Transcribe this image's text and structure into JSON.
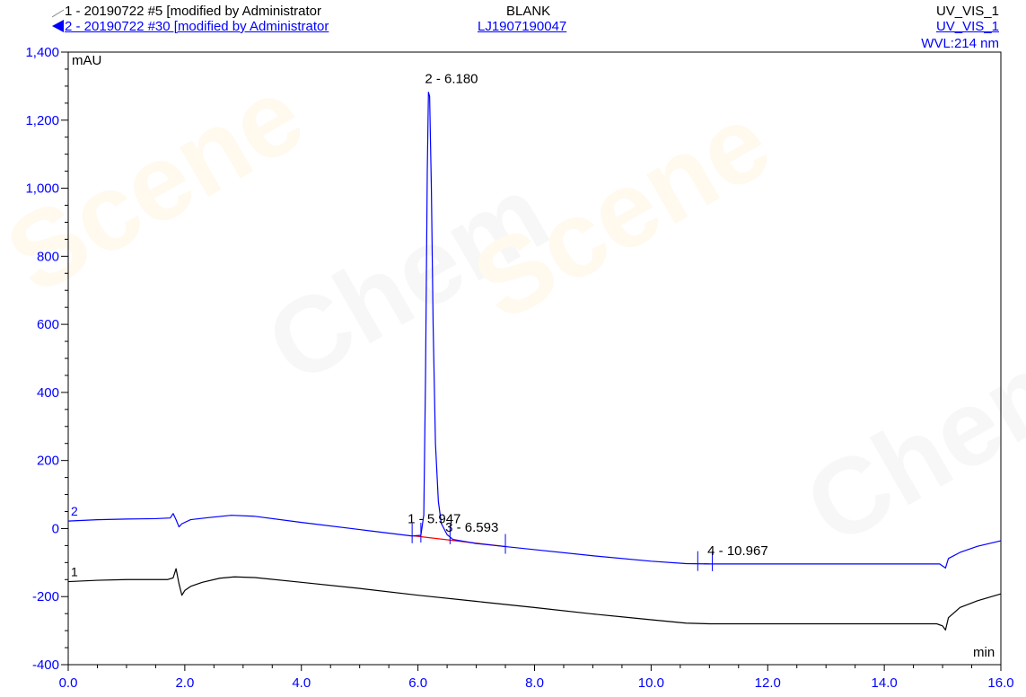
{
  "header": {
    "trace1_label": "1 - 20190722 #5 [modified by Administrator",
    "trace2_label": "2 - 20190722 #30 [modified by Administrator",
    "trace1_sample": "BLANK",
    "trace2_sample": "LJ1907190047",
    "trace1_channel": "UV_VIS_1",
    "trace2_channel": "UV_VIS_1",
    "wavelength": "WVL:214 nm"
  },
  "colors": {
    "trace1": "#000000",
    "trace2": "#0000ff",
    "axis": "#0000ff",
    "baseline": "#ff0000"
  },
  "chart_data": {
    "type": "line",
    "ylabel": "mAU",
    "xlabel": "min",
    "xlim": [
      0.0,
      16.0
    ],
    "ylim": [
      -400,
      1400
    ],
    "x_ticks": [
      0,
      2,
      4,
      6,
      8,
      10,
      12,
      14,
      16
    ],
    "x_tick_labels": [
      "0.0",
      "2.0",
      "4.0",
      "6.0",
      "8.0",
      "10.0",
      "12.0",
      "14.0",
      "16.0"
    ],
    "y_ticks": [
      -400,
      -200,
      0,
      200,
      400,
      600,
      800,
      1000,
      1200,
      1400
    ],
    "y_tick_labels": [
      "-400",
      "-200",
      "0",
      "200",
      "400",
      "600",
      "800",
      "1,000",
      "1,200",
      "1,400"
    ],
    "series": [
      {
        "name": "1",
        "points": [
          [
            0.0,
            -156
          ],
          [
            0.5,
            -152
          ],
          [
            1.0,
            -150
          ],
          [
            1.4,
            -150
          ],
          [
            1.7,
            -150
          ],
          [
            1.8,
            -145
          ],
          [
            1.85,
            -118
          ],
          [
            1.9,
            -162
          ],
          [
            1.95,
            -196
          ],
          [
            2.0,
            -182
          ],
          [
            2.1,
            -170
          ],
          [
            2.3,
            -158
          ],
          [
            2.6,
            -146
          ],
          [
            2.85,
            -142
          ],
          [
            3.2,
            -144
          ],
          [
            4.0,
            -158
          ],
          [
            5.0,
            -176
          ],
          [
            6.0,
            -196
          ],
          [
            7.0,
            -214
          ],
          [
            8.0,
            -232
          ],
          [
            9.0,
            -251
          ],
          [
            10.0,
            -268
          ],
          [
            10.6,
            -278
          ],
          [
            11.0,
            -280
          ],
          [
            12.0,
            -280
          ],
          [
            13.0,
            -280
          ],
          [
            14.0,
            -280
          ],
          [
            14.9,
            -280
          ],
          [
            15.0,
            -286
          ],
          [
            15.05,
            -298
          ],
          [
            15.1,
            -262
          ],
          [
            15.3,
            -232
          ],
          [
            15.6,
            -212
          ],
          [
            16.0,
            -192
          ]
        ]
      },
      {
        "name": "2",
        "points": [
          [
            0.0,
            22
          ],
          [
            0.5,
            26
          ],
          [
            1.0,
            28
          ],
          [
            1.5,
            29
          ],
          [
            1.75,
            31
          ],
          [
            1.8,
            44
          ],
          [
            1.85,
            26
          ],
          [
            1.9,
            5
          ],
          [
            1.95,
            14
          ],
          [
            2.1,
            26
          ],
          [
            2.4,
            32
          ],
          [
            2.8,
            39
          ],
          [
            3.2,
            36
          ],
          [
            4.0,
            18
          ],
          [
            5.0,
            -3
          ],
          [
            5.9,
            -22
          ],
          [
            6.05,
            -20
          ],
          [
            6.1,
            40
          ],
          [
            6.13,
            450
          ],
          [
            6.16,
            1050
          ],
          [
            6.18,
            1282
          ],
          [
            6.2,
            1270
          ],
          [
            6.23,
            1000
          ],
          [
            6.26,
            600
          ],
          [
            6.3,
            250
          ],
          [
            6.35,
            80
          ],
          [
            6.4,
            15
          ],
          [
            6.5,
            -18
          ],
          [
            6.6,
            -32
          ],
          [
            7.0,
            -44
          ],
          [
            8.0,
            -62
          ],
          [
            9.0,
            -80
          ],
          [
            10.0,
            -96
          ],
          [
            10.6,
            -103
          ],
          [
            11.0,
            -104
          ],
          [
            12.0,
            -104
          ],
          [
            13.0,
            -104
          ],
          [
            14.0,
            -104
          ],
          [
            14.95,
            -104
          ],
          [
            15.0,
            -110
          ],
          [
            15.05,
            -116
          ],
          [
            15.1,
            -88
          ],
          [
            15.3,
            -70
          ],
          [
            15.6,
            -52
          ],
          [
            16.0,
            -36
          ]
        ]
      }
    ],
    "peaks": [
      {
        "label": "1 - 5.947",
        "rt": 5.947
      },
      {
        "label": "2 - 6.180",
        "rt": 6.18
      },
      {
        "label": "3 - 6.593",
        "rt": 6.593
      },
      {
        "label": "4 - 10.967",
        "rt": 10.967
      }
    ]
  }
}
